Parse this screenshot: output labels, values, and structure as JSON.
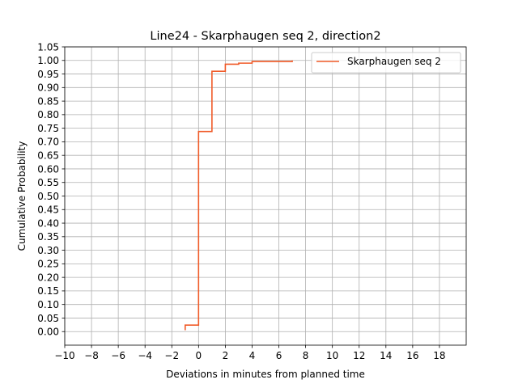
{
  "chart_data": {
    "type": "line",
    "step": true,
    "title": "Line24 - Skarphaugen seq 2, direction2",
    "xlabel": "Deviations in minutes from planned time",
    "ylabel": "Cumulative Probability",
    "xlim": [
      -10,
      20
    ],
    "ylim": [
      -0.05,
      1.05
    ],
    "xticks": [
      -10,
      -8,
      -6,
      -4,
      -2,
      0,
      2,
      4,
      6,
      8,
      10,
      12,
      14,
      16,
      18
    ],
    "xtick_labels": [
      "−10",
      "−8",
      "−6",
      "−4",
      "−2",
      "0",
      "2",
      "4",
      "6",
      "8",
      "10",
      "12",
      "14",
      "16",
      "18"
    ],
    "yticks": [
      0.0,
      0.05,
      0.1,
      0.15,
      0.2,
      0.25,
      0.3,
      0.35,
      0.4,
      0.45,
      0.5,
      0.55,
      0.6,
      0.65,
      0.7,
      0.75,
      0.8,
      0.85,
      0.9,
      0.95,
      1.0,
      1.05
    ],
    "ytick_labels": [
      "0.00",
      "0.05",
      "0.10",
      "0.15",
      "0.20",
      "0.25",
      "0.30",
      "0.35",
      "0.40",
      "0.45",
      "0.50",
      "0.55",
      "0.60",
      "0.65",
      "0.70",
      "0.75",
      "0.80",
      "0.85",
      "0.90",
      "0.95",
      "1.00",
      "1.05"
    ],
    "grid": true,
    "legend_position": "top-right",
    "series": [
      {
        "name": "Skarphaugen seq 2",
        "color": "#f05a28",
        "x": [
          -1,
          -1,
          0,
          0,
          1,
          1,
          2,
          2,
          3,
          3,
          4,
          4,
          7,
          7
        ],
        "y": [
          0.005,
          0.024,
          0.024,
          0.738,
          0.738,
          0.96,
          0.96,
          0.986,
          0.986,
          0.99,
          0.99,
          0.996,
          0.996,
          1.0
        ]
      }
    ]
  }
}
